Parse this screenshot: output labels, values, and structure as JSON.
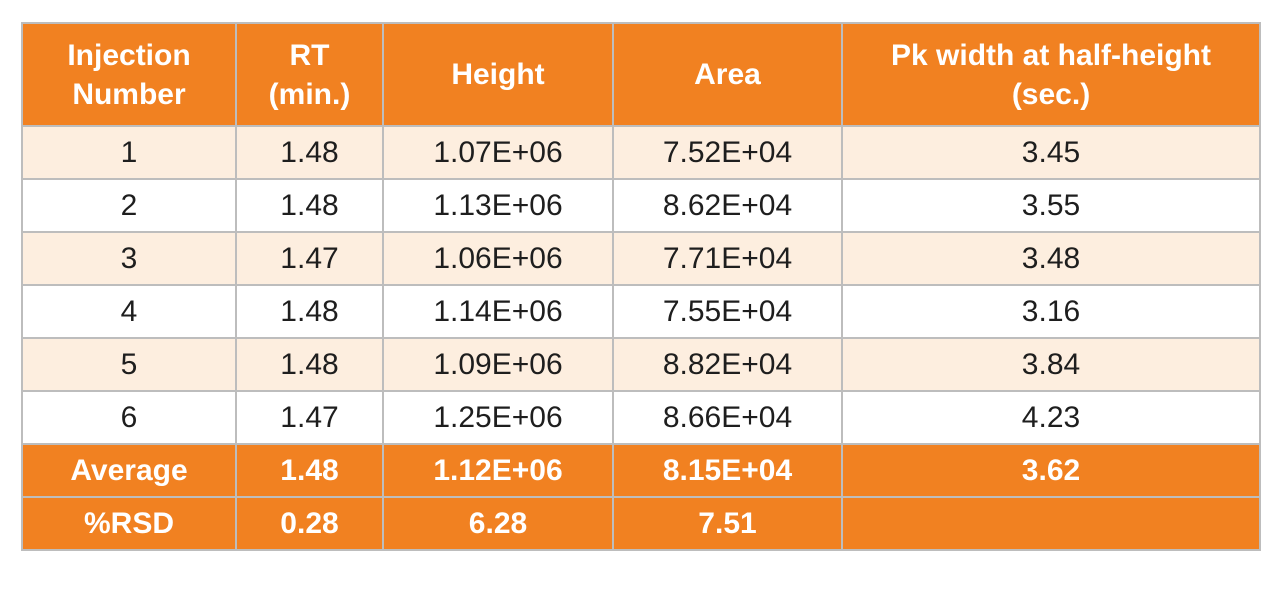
{
  "table": {
    "headers": [
      "Injection\nNumber",
      "RT\n(min.)",
      "Height",
      "Area",
      "Pk width at half-height\n(sec.)"
    ],
    "rows": [
      [
        "1",
        "1.48",
        "1.07E+06",
        "7.52E+04",
        "3.45"
      ],
      [
        "2",
        "1.48",
        "1.13E+06",
        "8.62E+04",
        "3.55"
      ],
      [
        "3",
        "1.47",
        "1.06E+06",
        "7.71E+04",
        "3.48"
      ],
      [
        "4",
        "1.48",
        "1.14E+06",
        "7.55E+04",
        "3.16"
      ],
      [
        "5",
        "1.48",
        "1.09E+06",
        "8.82E+04",
        "3.84"
      ],
      [
        "6",
        "1.47",
        "1.25E+06",
        "8.66E+04",
        "4.23"
      ]
    ],
    "summary": [
      [
        "Average",
        "1.48",
        "1.12E+06",
        "8.15E+04",
        "3.62"
      ],
      [
        "%RSD",
        "0.28",
        "6.28",
        "7.51",
        ""
      ]
    ],
    "colors": {
      "header_bg": "#f18121",
      "stripe_bg": "#fdeedf",
      "border": "#bdbdbd"
    }
  }
}
